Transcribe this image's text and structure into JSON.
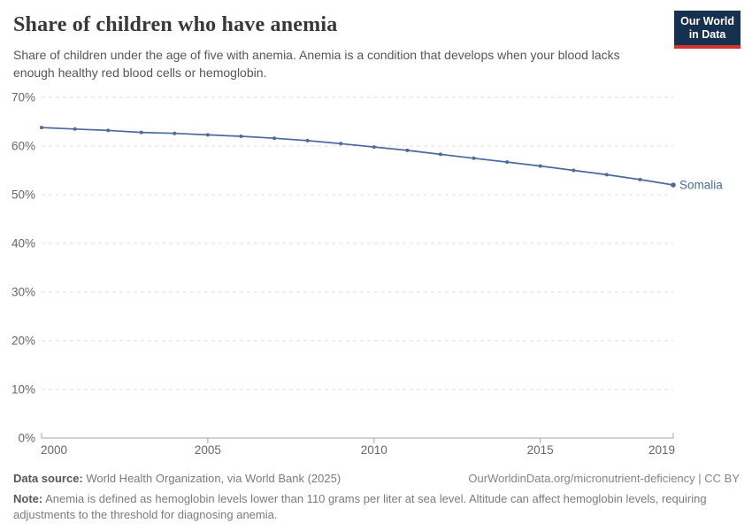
{
  "header": {
    "title": "Share of children who have anemia",
    "subtitle_line1": "Share of children under the age of five with anemia. Anemia is a condition that develops when your blood lacks",
    "subtitle_line2": "enough healthy red blood cells or hemoglobin.",
    "logo_line1": "Our World",
    "logo_line2": "in Data"
  },
  "chart_data": {
    "type": "line",
    "title": "Share of children who have anemia",
    "x": [
      2000,
      2001,
      2002,
      2003,
      2004,
      2005,
      2006,
      2007,
      2008,
      2009,
      2010,
      2011,
      2012,
      2013,
      2014,
      2015,
      2016,
      2017,
      2018,
      2019
    ],
    "series": [
      {
        "name": "Somalia",
        "values": [
          63.8,
          63.5,
          63.2,
          62.8,
          62.6,
          62.3,
          62.0,
          61.6,
          61.1,
          60.5,
          59.8,
          59.1,
          58.3,
          57.5,
          56.7,
          55.9,
          55.0,
          54.1,
          53.1,
          52.0
        ]
      }
    ],
    "end_label": "Somalia",
    "xlim": [
      2000,
      2019
    ],
    "ylim": [
      0,
      70
    ],
    "x_ticks": [
      2000,
      2005,
      2010,
      2015,
      2019
    ],
    "y_ticks": [
      0,
      10,
      20,
      30,
      40,
      50,
      60,
      70
    ],
    "y_tick_suffix": "%",
    "grid": "horizontal-dashed",
    "legend_position": "end-of-line"
  },
  "footer": {
    "source_label": "Data source:",
    "source_text": " World Health Organization, via World Bank (2025)",
    "attribution": "OurWorldinData.org/micronutrient-deficiency | CC BY",
    "note_label": "Note:",
    "note_line1": " Anemia is defined as hemoglobin levels lower than 110 grams per liter at sea level. Altitude can affect hemoglobin levels, requiring",
    "note_line2": "adjustments to the threshold for diagnosing anemia."
  },
  "colors": {
    "line": "#4c6a9c",
    "entity_label": "#4c6a9c",
    "grid": "#dcdcdc",
    "axis": "#a5a5a5",
    "tick_label": "#666666",
    "logo_bg": "#16304f",
    "logo_accent": "#d7352c"
  }
}
